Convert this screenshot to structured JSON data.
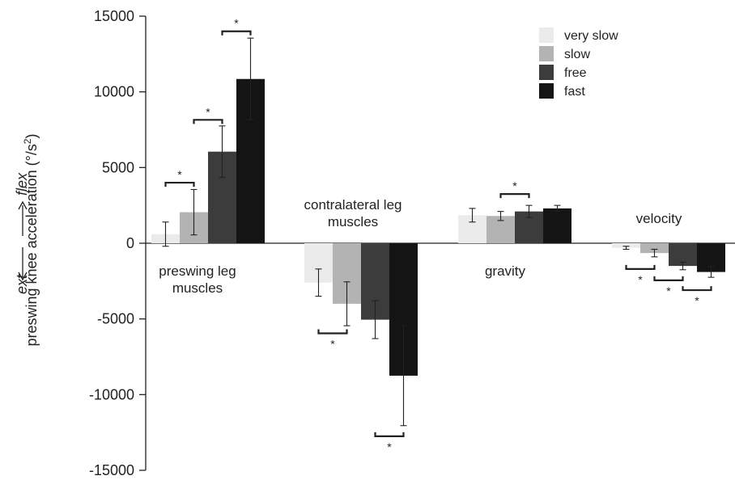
{
  "chart_data": {
    "type": "bar",
    "ylabel_main": "preswing knee acceleration (°/s",
    "ylabel_sup": "2",
    "ylabel_end": ")",
    "flex_label": "flex",
    "ext_label": "ext",
    "ylim": [
      -15000,
      15000
    ],
    "yticks": [
      "15000",
      "10000",
      "5000",
      "0",
      "-5000",
      "-10000",
      "-15000"
    ],
    "ytick_values": [
      15000,
      10000,
      5000,
      0,
      -5000,
      -10000,
      -15000
    ],
    "categories": [
      "preswing leg muscles",
      "contralateral leg muscles",
      "gravity",
      "velocity"
    ],
    "category_label_lines": [
      [
        "preswing leg",
        "muscles"
      ],
      [
        "contralateral leg",
        "muscles"
      ],
      [
        "gravity"
      ],
      [
        "velocity"
      ]
    ],
    "legend_position": "top-right",
    "series": [
      {
        "name": "very slow",
        "color": "#ebebeb",
        "values": [
          600,
          -2600,
          1850,
          -300
        ],
        "errors": [
          800,
          900,
          450,
          100
        ]
      },
      {
        "name": "slow",
        "color": "#b3b3b3",
        "values": [
          2050,
          -4000,
          1800,
          -650
        ],
        "errors": [
          1500,
          1450,
          300,
          250
        ]
      },
      {
        "name": "free",
        "color": "#3c3c3c",
        "values": [
          6050,
          -5050,
          2100,
          -1500
        ],
        "errors": [
          1700,
          1250,
          400,
          250
        ]
      },
      {
        "name": "fast",
        "color": "#141414",
        "values": [
          10850,
          -8750,
          2300,
          -1900
        ],
        "errors": [
          2700,
          3300,
          200,
          350
        ]
      }
    ],
    "significance": [
      {
        "category": 0,
        "from": 0,
        "to": 1,
        "value": 4000,
        "label": "*"
      },
      {
        "category": 0,
        "from": 1,
        "to": 2,
        "value": 8150,
        "label": "*"
      },
      {
        "category": 0,
        "from": 2,
        "to": 3,
        "value": 14000,
        "label": "*"
      },
      {
        "category": 1,
        "from": 0,
        "to": 1,
        "value": -5950,
        "label": "*"
      },
      {
        "category": 1,
        "from": 2,
        "to": 3,
        "value": -12750,
        "label": "*"
      },
      {
        "category": 2,
        "from": 1,
        "to": 2,
        "value": 3250,
        "label": "*"
      },
      {
        "category": 3,
        "from": 0,
        "to": 1,
        "value": -1700,
        "label": "*"
      },
      {
        "category": 3,
        "from": 1,
        "to": 2,
        "value": -2450,
        "label": "*"
      },
      {
        "category": 3,
        "from": 2,
        "to": 3,
        "value": -3100,
        "label": "*"
      }
    ]
  }
}
